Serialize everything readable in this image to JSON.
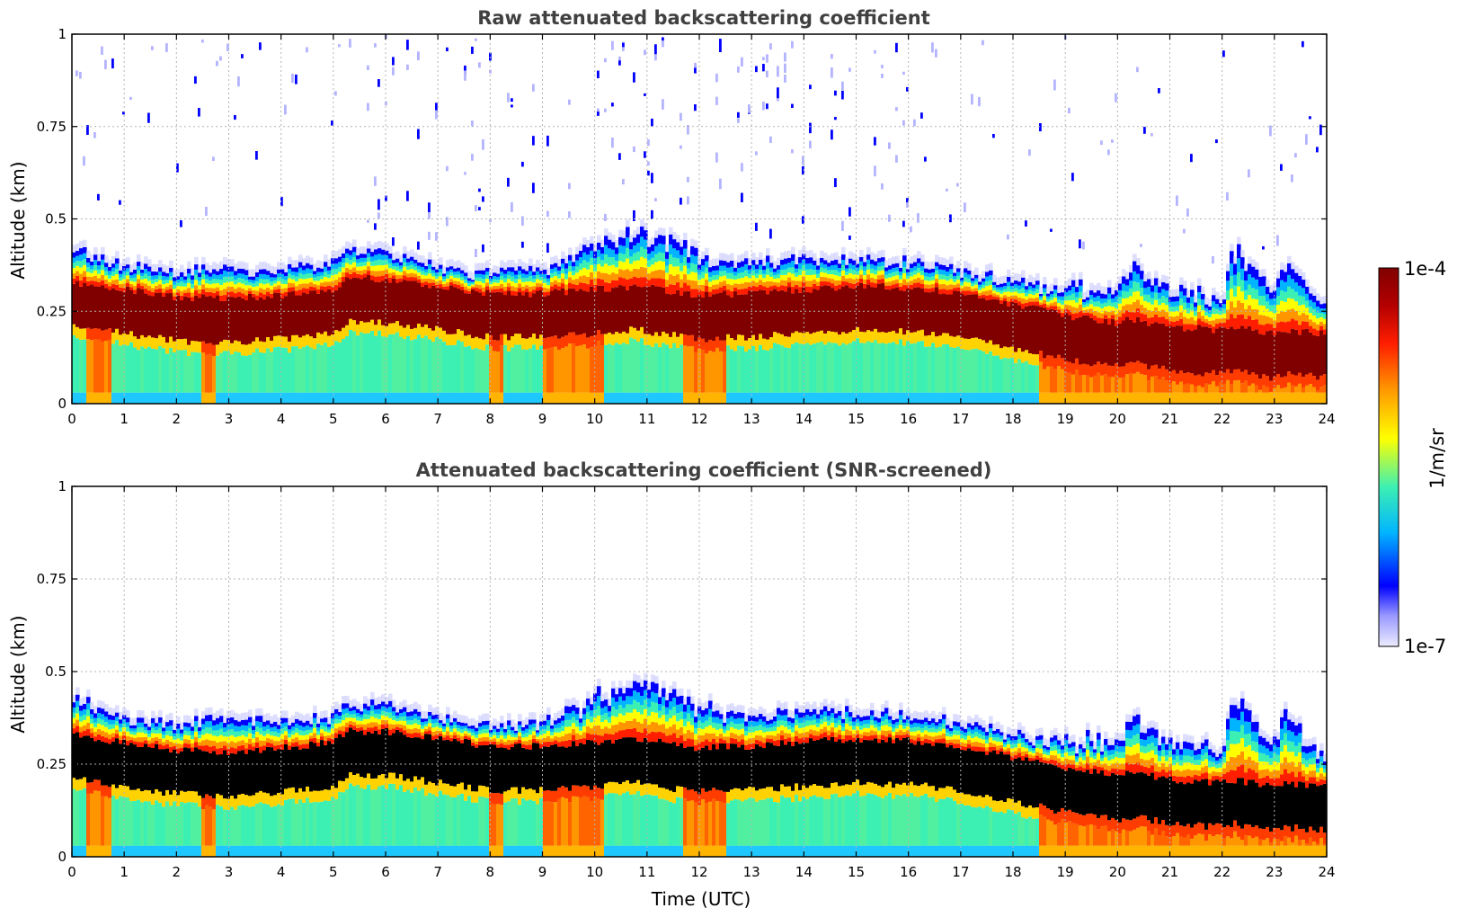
{
  "chart_data": [
    {
      "type": "heatmap",
      "title": "Raw attenuated backscattering coefficient",
      "xlabel": "",
      "ylabel": "Altitude (km)",
      "xlim": [
        0,
        24
      ],
      "ylim": [
        0,
        1
      ],
      "x_ticks": [
        "0",
        "1",
        "2",
        "3",
        "4",
        "5",
        "6",
        "7",
        "8",
        "9",
        "10",
        "11",
        "12",
        "13",
        "14",
        "15",
        "16",
        "17",
        "18",
        "19",
        "20",
        "21",
        "22",
        "23",
        "24"
      ],
      "y_ticks": [
        "0",
        "0.25",
        "0.5",
        "0.75",
        "1"
      ],
      "grid": true,
      "screened": false,
      "layer_profile": {
        "time_utc": [
          0,
          1,
          2,
          3,
          4,
          5,
          5.3,
          6,
          7,
          8,
          9,
          10,
          10.8,
          11.5,
          12,
          13,
          14,
          15,
          16,
          17,
          18,
          19,
          20,
          20.3,
          21,
          22,
          22.2,
          23,
          23.2,
          24
        ],
        "core_center_km": [
          0.28,
          0.26,
          0.24,
          0.235,
          0.245,
          0.26,
          0.29,
          0.29,
          0.27,
          0.25,
          0.25,
          0.26,
          0.27,
          0.255,
          0.245,
          0.25,
          0.26,
          0.27,
          0.265,
          0.25,
          0.22,
          0.19,
          0.17,
          0.18,
          0.16,
          0.15,
          0.16,
          0.14,
          0.15,
          0.14
        ],
        "top_km": [
          0.42,
          0.37,
          0.36,
          0.36,
          0.36,
          0.38,
          0.41,
          0.41,
          0.37,
          0.35,
          0.36,
          0.42,
          0.46,
          0.44,
          0.39,
          0.38,
          0.39,
          0.39,
          0.38,
          0.36,
          0.33,
          0.3,
          0.31,
          0.38,
          0.3,
          0.27,
          0.42,
          0.3,
          0.38,
          0.26
        ]
      }
    },
    {
      "type": "heatmap",
      "title": "Attenuated backscattering coefficient (SNR-screened)",
      "xlabel": "Time (UTC)",
      "ylabel": "Altitude (km)",
      "xlim": [
        0,
        24
      ],
      "ylim": [
        0,
        1
      ],
      "x_ticks": [
        "0",
        "1",
        "2",
        "3",
        "4",
        "5",
        "6",
        "7",
        "8",
        "9",
        "10",
        "11",
        "12",
        "13",
        "14",
        "15",
        "16",
        "17",
        "18",
        "19",
        "20",
        "21",
        "22",
        "23",
        "24"
      ],
      "y_ticks": [
        "0",
        "0.25",
        "0.5",
        "0.75",
        "1"
      ],
      "grid": true,
      "screened": true,
      "layer_profile": {
        "time_utc": [
          0,
          1,
          2,
          3,
          4,
          5,
          5.3,
          6,
          7,
          8,
          9,
          10,
          10.8,
          11.5,
          12,
          13,
          14,
          15,
          16,
          17,
          18,
          19,
          20,
          20.3,
          21,
          22,
          22.2,
          23,
          23.2,
          24
        ],
        "core_center_km": [
          0.28,
          0.26,
          0.24,
          0.235,
          0.245,
          0.26,
          0.29,
          0.29,
          0.27,
          0.25,
          0.25,
          0.26,
          0.27,
          0.255,
          0.245,
          0.25,
          0.26,
          0.27,
          0.265,
          0.25,
          0.22,
          0.19,
          0.17,
          0.18,
          0.16,
          0.15,
          0.16,
          0.14,
          0.15,
          0.14
        ],
        "top_km": [
          0.43,
          0.37,
          0.36,
          0.37,
          0.37,
          0.38,
          0.41,
          0.41,
          0.37,
          0.35,
          0.36,
          0.42,
          0.47,
          0.45,
          0.39,
          0.38,
          0.39,
          0.39,
          0.38,
          0.36,
          0.33,
          0.3,
          0.31,
          0.38,
          0.3,
          0.27,
          0.42,
          0.3,
          0.38,
          0.26
        ]
      }
    }
  ],
  "colorbar": {
    "label": "1/m/sr",
    "max_label": "1e-4",
    "min_label": "1e-7",
    "scale": "log",
    "colormap": [
      "#e8e8ff",
      "#0000ff",
      "#00c8ff",
      "#3cf0b4",
      "#ffff00",
      "#ff8c00",
      "#ff0000",
      "#800000"
    ],
    "screened_saturation_color": "#000000"
  }
}
